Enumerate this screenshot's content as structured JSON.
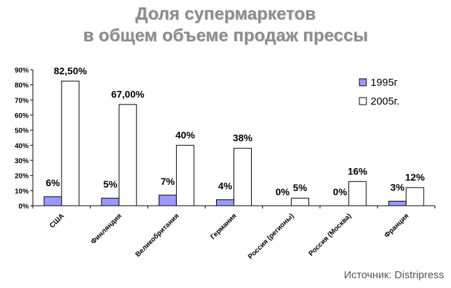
{
  "chart_data": {
    "type": "bar",
    "title_line1": "Доля супермаркетов",
    "title_line2": "в общем объеме продаж прессы",
    "categories": [
      "США",
      "Финляндия",
      "Великобритания",
      "Германия",
      "Россия (регионы)",
      "Россия (Москва)",
      "Франция"
    ],
    "series": [
      {
        "name": "1995г",
        "values": [
          6,
          5,
          7,
          4,
          0,
          0,
          3
        ],
        "labels": [
          "6%",
          "5%",
          "7%",
          "4%",
          "0%",
          "0%",
          "3%"
        ],
        "color": "#9999ff"
      },
      {
        "name": "2005г.",
        "values": [
          82.5,
          67,
          40,
          38,
          5,
          16,
          12
        ],
        "labels": [
          "82,50%",
          "67,00%",
          "40%",
          "38%",
          "5%",
          "16%",
          "12%"
        ],
        "color": "#ffffff"
      }
    ],
    "ylim": [
      0,
      90
    ],
    "yticks": [
      0,
      10,
      20,
      30,
      40,
      50,
      60,
      70,
      80,
      90
    ],
    "ytick_labels": [
      "0%",
      "10%",
      "20%",
      "30%",
      "40%",
      "50%",
      "60%",
      "70%",
      "80%",
      "90%"
    ],
    "legend_position": "top-right",
    "grid": false
  },
  "source_text": "Источник: Distripress"
}
